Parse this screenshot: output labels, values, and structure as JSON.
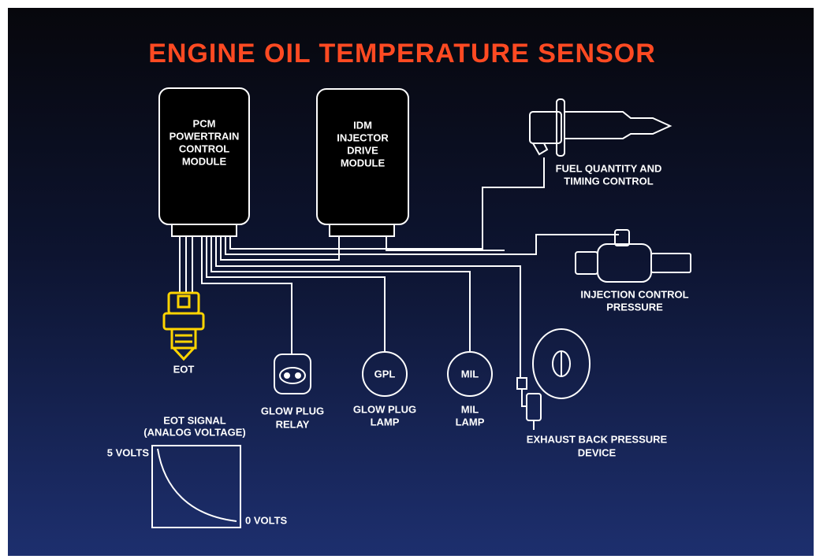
{
  "title": "ENGINE OIL TEMPERATURE SENSOR",
  "nodes": [
    {
      "label": [
        "PCM",
        "POWERTRAIN",
        "CONTROL",
        "MODULE"
      ]
    },
    {
      "label": [
        "IDM",
        "INJECTOR",
        "DRIVE",
        "MODULE"
      ]
    },
    {
      "label": [
        "FUEL QUANTITY AND",
        "TIMING CONTROL"
      ]
    },
    {
      "label": [
        "INJECTION CONTROL",
        "PRESSURE"
      ]
    },
    {
      "label": [
        "EOT"
      ]
    },
    {
      "label": [
        "GLOW PLUG",
        "RELAY"
      ]
    },
    {
      "label": [
        "GPL"
      ]
    },
    {
      "label": [
        "GLOW PLUG",
        "LAMP"
      ]
    },
    {
      "label": [
        "MIL"
      ]
    },
    {
      "label": [
        "MIL",
        "LAMP"
      ]
    },
    {
      "label": [
        "EXHAUST BACK PRESSURE",
        "DEVICE"
      ]
    }
  ],
  "graph": {
    "title": [
      "EOT SIGNAL",
      "(ANALOG VOLTAGE)"
    ],
    "high": "5 VOLTS",
    "low": "0 VOLTS"
  }
}
